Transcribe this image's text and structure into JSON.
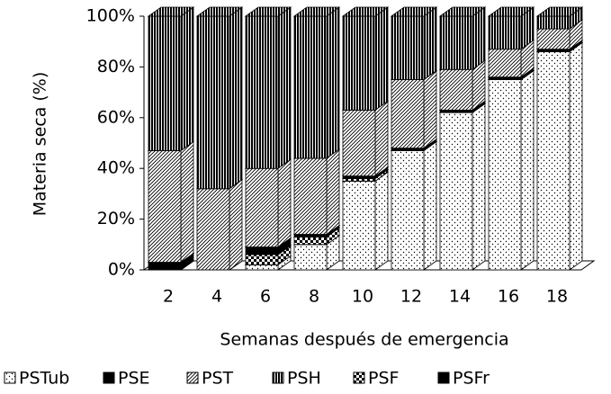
{
  "chart_data": {
    "type": "stacked-bar-3d",
    "y_label": "Materia seca (%)",
    "x_label": "Semanas después de emergencia",
    "categories": [
      "2",
      "4",
      "6",
      "8",
      "10",
      "12",
      "14",
      "16",
      "18"
    ],
    "series": [
      {
        "name": "PSTub",
        "pattern": "dots",
        "values": [
          0,
          0,
          2,
          10,
          35,
          47,
          62,
          75,
          86
        ]
      },
      {
        "name": "PSE",
        "pattern": "solid",
        "values": [
          3,
          0,
          3,
          1,
          1,
          1,
          1,
          1,
          1
        ]
      },
      {
        "name": "PST",
        "pattern": "diagonal",
        "values": [
          44,
          32,
          31,
          30,
          26,
          27,
          16,
          11,
          8
        ]
      },
      {
        "name": "PSH",
        "pattern": "vertical",
        "values": [
          53,
          68,
          60,
          56,
          37,
          25,
          21,
          13,
          5
        ]
      },
      {
        "name": "PSF",
        "pattern": "checker",
        "values": [
          0,
          0,
          4,
          3,
          1,
          0,
          0,
          0,
          0
        ]
      },
      {
        "name": "PSFr",
        "pattern": "solid",
        "values": [
          0,
          0,
          0,
          0,
          0,
          0,
          0,
          0,
          0
        ]
      }
    ],
    "ylim": [
      0,
      100
    ],
    "yticks": [
      {
        "value": 0,
        "label": "0%"
      },
      {
        "value": 20,
        "label": "20%"
      },
      {
        "value": 40,
        "label": "40%"
      },
      {
        "value": 60,
        "label": "60%"
      },
      {
        "value": 80,
        "label": "80%"
      },
      {
        "value": 100,
        "label": "100%"
      }
    ]
  }
}
